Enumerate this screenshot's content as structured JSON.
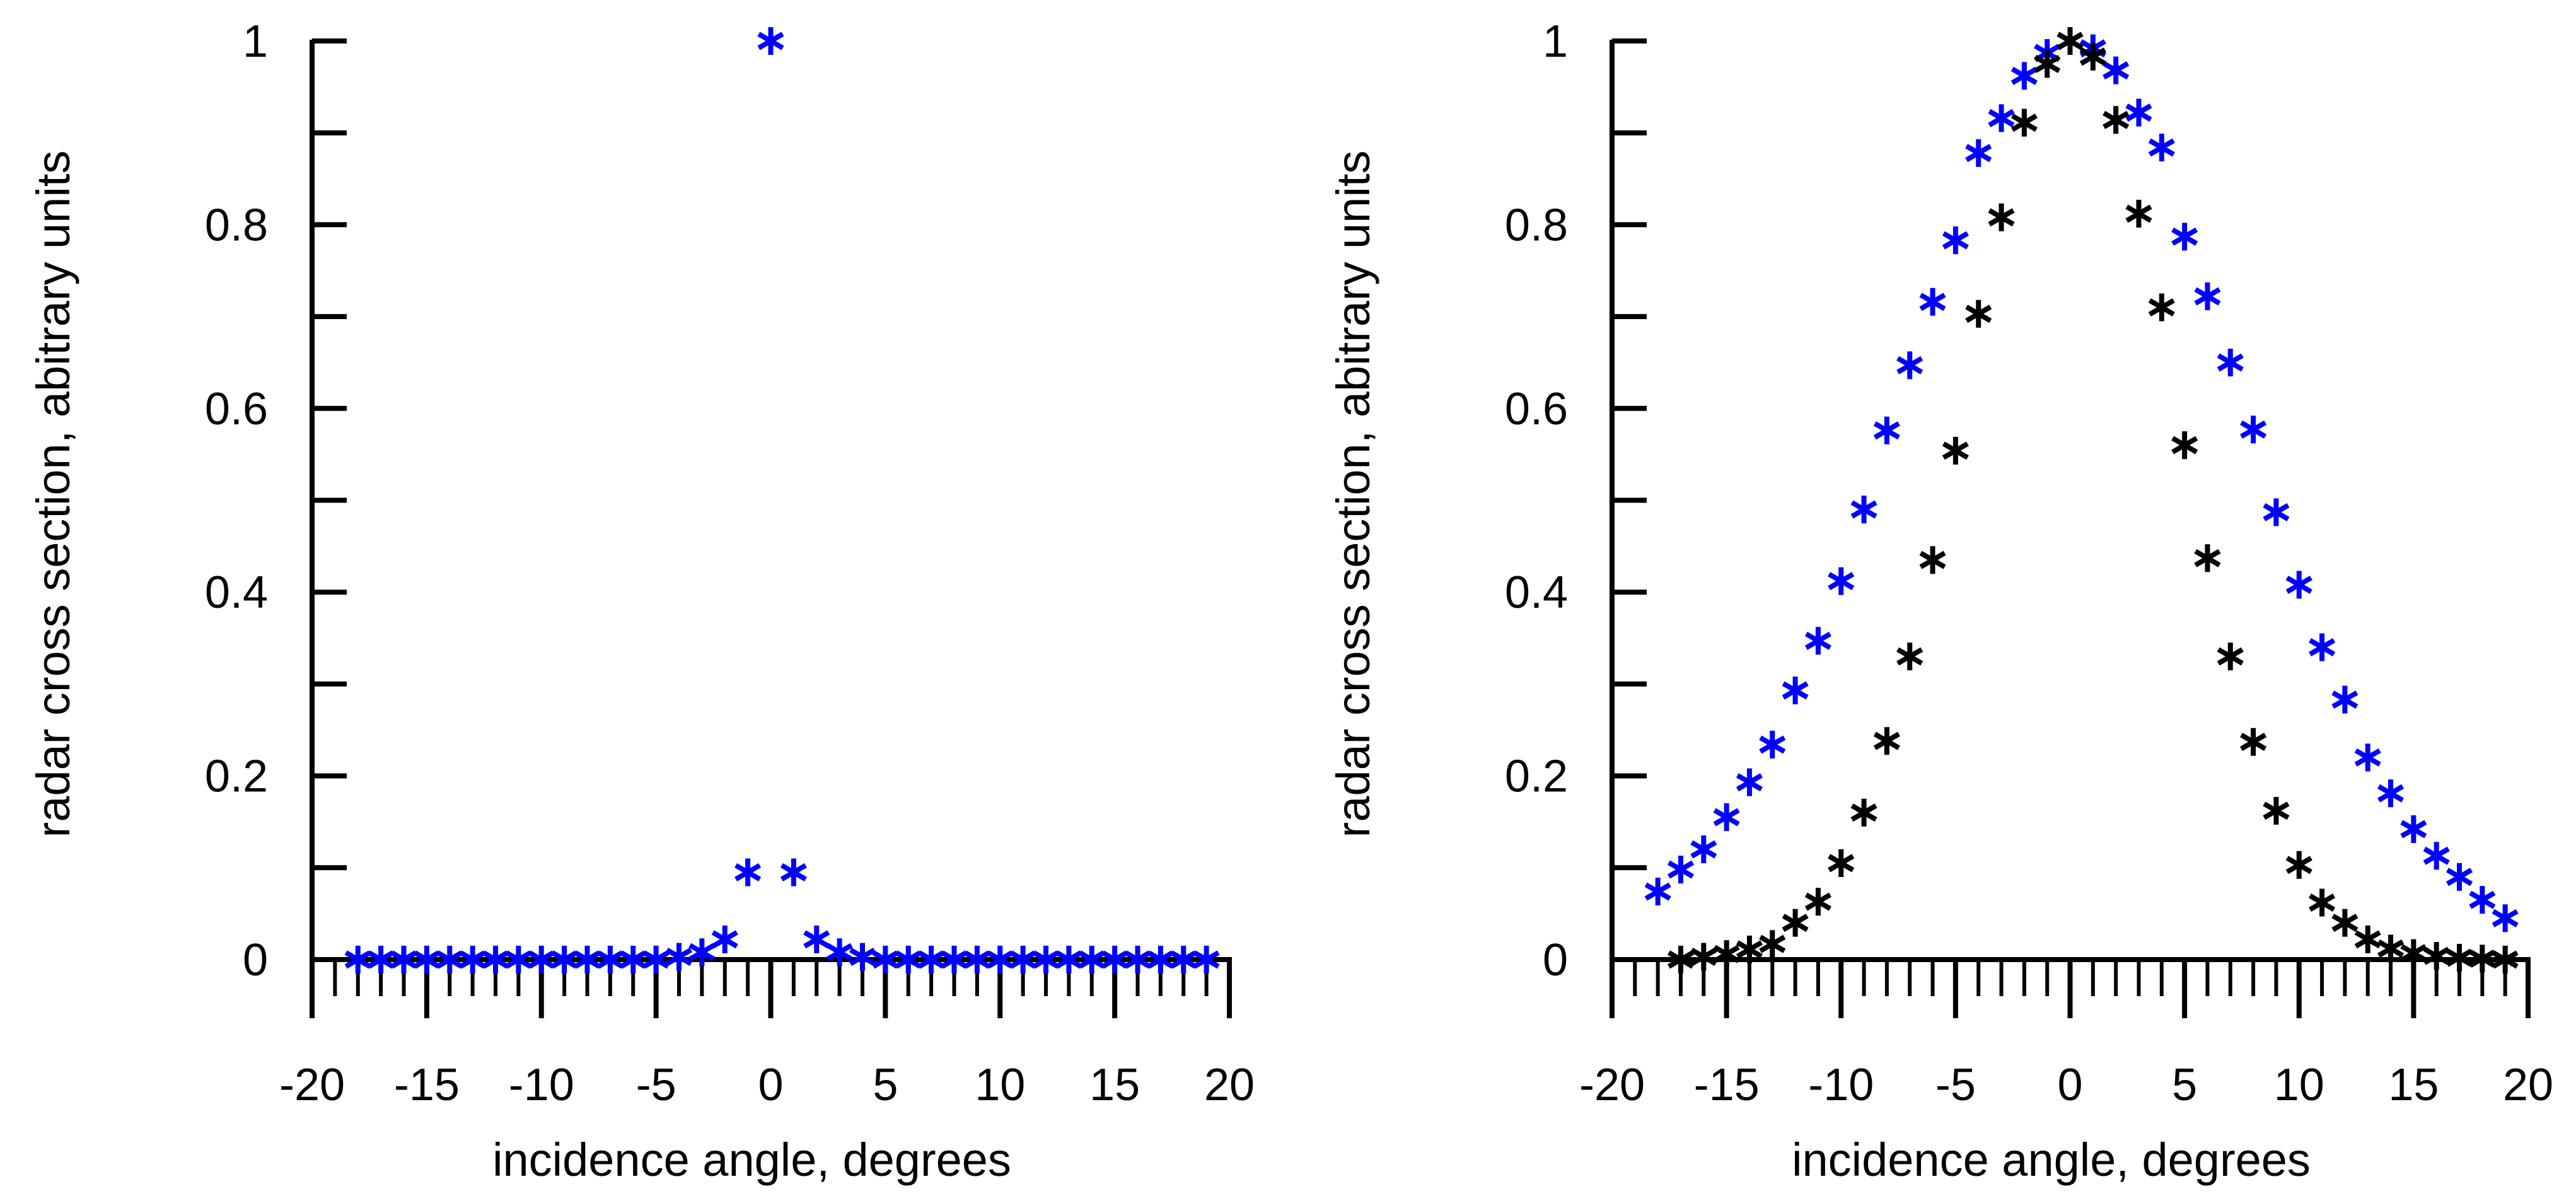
{
  "colors": {
    "blue": "#0000ff",
    "black": "#000000",
    "axis": "#000000"
  },
  "chart_data": [
    {
      "type": "scatter",
      "marker": "asterisk",
      "title": "",
      "xlabel": "incidence angle, degrees",
      "ylabel": "radar cross section, abitrary units",
      "xlim": [
        -20,
        20
      ],
      "ylim": [
        0,
        1
      ],
      "xticks": [
        -20,
        -15,
        -10,
        -5,
        0,
        5,
        10,
        15,
        20
      ],
      "xtick_labels": [
        "-20",
        "-15",
        "-10",
        "-5",
        "0",
        "5",
        "10",
        "15",
        "20"
      ],
      "yticks": [
        0,
        0.2,
        0.4,
        0.6,
        0.8,
        1
      ],
      "ytick_labels": [
        "0",
        "0.2",
        "0.4",
        "0.6",
        "0.8",
        "1"
      ],
      "grid": false,
      "series": [
        {
          "name": "blue",
          "color": "#0000ff",
          "x": [
            -18,
            -17,
            -16,
            -15,
            -14,
            -13,
            -12,
            -11,
            -10,
            -9,
            -8,
            -7,
            -6,
            -5,
            -4,
            -3,
            -2,
            -1,
            0,
            1,
            2,
            3,
            4,
            5,
            6,
            7,
            8,
            9,
            10,
            11,
            12,
            13,
            14,
            15,
            16,
            17,
            18,
            19
          ],
          "y": [
            0,
            0,
            0,
            0,
            0,
            0,
            0,
            0,
            0,
            0,
            0,
            0,
            0,
            0,
            0.003,
            0.008,
            0.022,
            0.095,
            1,
            0.095,
            0.022,
            0.008,
            0.003,
            0,
            0,
            0,
            0,
            0,
            0,
            0,
            0,
            0,
            0,
            0,
            0,
            0,
            0,
            0
          ]
        }
      ]
    },
    {
      "type": "scatter",
      "marker": "asterisk",
      "title": "",
      "xlabel": "incidence angle, degrees",
      "ylabel": "radar cross section, abitrary units",
      "xlim": [
        -20,
        20
      ],
      "ylim": [
        0,
        1
      ],
      "xticks": [
        -20,
        -15,
        -10,
        -5,
        0,
        5,
        10,
        15,
        20
      ],
      "xtick_labels": [
        "-20",
        "-15",
        "-10",
        "-5",
        "0",
        "5",
        "10",
        "15",
        "20"
      ],
      "yticks": [
        0,
        0.2,
        0.4,
        0.6,
        0.8,
        1
      ],
      "ytick_labels": [
        "0",
        "0.2",
        "0.4",
        "0.6",
        "0.8",
        "1"
      ],
      "grid": false,
      "series": [
        {
          "name": "blue",
          "color": "#0000ff",
          "x": [
            -18,
            -17,
            -16,
            -15,
            -14,
            -13,
            -12,
            -11,
            -10,
            -9,
            -8,
            -7,
            -6,
            -5,
            -4,
            -3,
            -2,
            -1,
            0,
            1,
            2,
            3,
            4,
            5,
            6,
            7,
            8,
            9,
            10,
            11,
            12,
            13,
            14,
            15,
            16,
            17,
            18,
            19
          ],
          "y": [
            0.074,
            0.098,
            0.12,
            0.155,
            0.193,
            0.234,
            0.293,
            0.347,
            0.412,
            0.49,
            0.576,
            0.647,
            0.716,
            0.783,
            0.878,
            0.916,
            0.962,
            0.987,
            1.0,
            0.992,
            0.968,
            0.922,
            0.884,
            0.787,
            0.722,
            0.65,
            0.577,
            0.487,
            0.408,
            0.34,
            0.283,
            0.22,
            0.181,
            0.142,
            0.113,
            0.09,
            0.065,
            0.045
          ]
        },
        {
          "name": "black",
          "color": "#000000",
          "x": [
            -17,
            -16,
            -15,
            -14,
            -13,
            -12,
            -11,
            -10,
            -9,
            -8,
            -7,
            -6,
            -5,
            -4,
            -3,
            -2,
            -1,
            0,
            1,
            2,
            3,
            4,
            5,
            6,
            7,
            8,
            9,
            10,
            11,
            12,
            13,
            14,
            15,
            16,
            17,
            18,
            19
          ],
          "y": [
            0,
            0.003,
            0.006,
            0.011,
            0.017,
            0.04,
            0.063,
            0.105,
            0.16,
            0.238,
            0.33,
            0.435,
            0.554,
            0.703,
            0.808,
            0.911,
            0.975,
            1.0,
            0.983,
            0.914,
            0.812,
            0.71,
            0.56,
            0.437,
            0.33,
            0.237,
            0.162,
            0.103,
            0.062,
            0.04,
            0.022,
            0.012,
            0.007,
            0.004,
            0.002,
            0.001,
            0
          ]
        }
      ]
    }
  ]
}
